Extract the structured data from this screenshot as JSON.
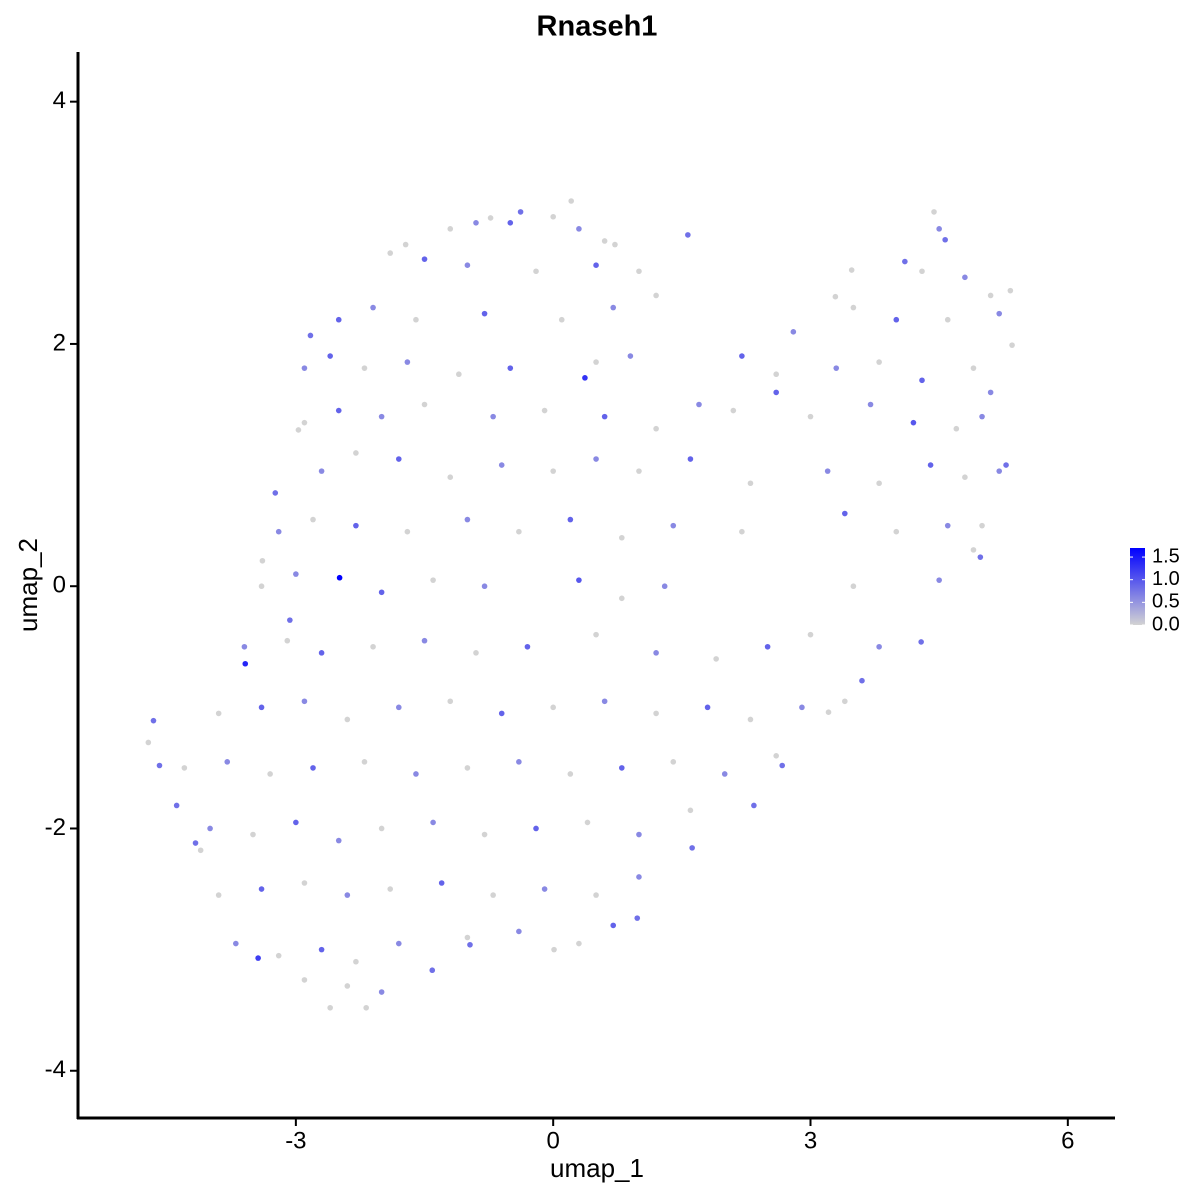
{
  "chart_data": {
    "type": "scatter",
    "title": "Rnaseh1",
    "x_label": "umap_1",
    "y_label": "umap_2",
    "xlim": [
      -5.54,
      6.55
    ],
    "ylim": [
      -4.39,
      4.41
    ],
    "xticks": [
      -3,
      0,
      3,
      6
    ],
    "yticks": [
      -4,
      -2,
      0,
      2,
      4
    ],
    "color_low": "#d3d3d3",
    "color_high": "#0000ff",
    "color_lim": [
      0,
      1.7
    ],
    "color_ticks": [
      {
        "value": 0,
        "label": "0.0"
      },
      0.5,
      {
        "value": 1,
        "label": "1.0"
      },
      1.5
    ],
    "x": [
      -4.72,
      -4.66,
      -4.59,
      -4.39,
      -2.49,
      -3.59,
      -2.6,
      -2.18,
      0.21,
      4.44,
      4.57,
      5.33,
      5.35,
      5.28,
      4.98,
      4.29,
      3.6,
      3.21,
      2.67,
      2.34,
      1.62,
      0.98,
      0.01,
      -0.97,
      -1.41,
      -3.44,
      -2.97,
      -2.83,
      -1.72,
      -0.73,
      -0.38,
      0.72,
      1.57,
      3.29,
      3.48,
      4.1,
      0.37,
      -3.24,
      -3.39,
      -3.07,
      -4.11,
      -4.17,
      -1.2,
      -0.9,
      -0.5,
      0.0,
      0.3,
      0.6,
      4.5,
      -1.9,
      -1.5,
      -1.0,
      -0.2,
      0.5,
      1.0,
      4.3,
      4.8,
      5.1,
      -2.5,
      -2.1,
      -1.6,
      -0.8,
      0.1,
      0.7,
      1.2,
      2.8,
      3.5,
      4.0,
      4.6,
      5.2,
      -2.9,
      -2.6,
      -2.2,
      -1.7,
      -1.1,
      -0.5,
      0.5,
      0.9,
      2.2,
      2.6,
      3.3,
      3.8,
      4.3,
      4.9,
      5.1,
      -2.9,
      -2.5,
      -2.0,
      -1.5,
      -0.7,
      -0.1,
      0.6,
      1.2,
      1.7,
      2.1,
      2.6,
      3.0,
      3.7,
      4.2,
      4.7,
      5.0,
      -2.7,
      -2.3,
      -1.8,
      -1.2,
      -0.6,
      0.0,
      0.5,
      1.0,
      1.6,
      2.3,
      3.2,
      3.8,
      4.4,
      4.8,
      5.2,
      -3.2,
      -2.8,
      -2.3,
      -1.7,
      -1.0,
      -0.4,
      0.2,
      0.8,
      1.4,
      2.2,
      3.4,
      4.0,
      4.6,
      5.0,
      -3.4,
      -3.0,
      -2.0,
      -1.4,
      -0.8,
      0.3,
      0.8,
      1.3,
      3.5,
      4.5,
      4.9,
      -3.6,
      -3.1,
      -2.7,
      -2.1,
      -1.5,
      -0.9,
      -0.3,
      0.5,
      1.2,
      1.9,
      2.5,
      3.0,
      3.8,
      -3.9,
      -3.4,
      -2.9,
      -2.4,
      -1.8,
      -1.2,
      -0.6,
      0.0,
      0.6,
      1.2,
      1.8,
      2.3,
      2.9,
      3.4,
      -4.3,
      -3.8,
      -3.3,
      -2.8,
      -2.2,
      -1.6,
      -1.0,
      -0.4,
      0.2,
      0.8,
      1.4,
      2.0,
      2.6,
      -4.0,
      -3.5,
      -3.0,
      -2.5,
      -2.0,
      -1.4,
      -0.8,
      -0.2,
      0.4,
      1.0,
      1.6,
      -3.9,
      -3.4,
      -2.9,
      -2.4,
      -1.9,
      -1.3,
      -0.7,
      -0.1,
      0.5,
      1.0,
      -3.7,
      -3.2,
      -2.7,
      -2.3,
      -1.8,
      -1.0,
      -0.4,
      0.3,
      0.7,
      -2.9,
      -2.4,
      -2.0
    ],
    "y": [
      -1.29,
      -1.11,
      -1.48,
      -1.81,
      0.07,
      -0.64,
      -3.48,
      -3.48,
      3.18,
      3.09,
      2.86,
      2.44,
      1.99,
      1.0,
      0.24,
      -0.46,
      -0.78,
      -1.04,
      -1.48,
      -1.81,
      -2.16,
      -2.74,
      -3.0,
      -2.96,
      -3.17,
      -3.07,
      1.29,
      2.07,
      2.82,
      3.04,
      3.09,
      2.82,
      2.9,
      2.39,
      2.61,
      2.68,
      1.72,
      0.77,
      0.21,
      -0.28,
      -2.18,
      -2.12,
      2.95,
      3.0,
      3.0,
      3.05,
      2.95,
      2.85,
      2.95,
      2.75,
      2.7,
      2.65,
      2.6,
      2.65,
      2.6,
      2.6,
      2.55,
      2.4,
      2.2,
      2.3,
      2.2,
      2.25,
      2.2,
      2.3,
      2.4,
      2.1,
      2.3,
      2.2,
      2.2,
      2.25,
      1.8,
      1.9,
      1.8,
      1.85,
      1.75,
      1.8,
      1.85,
      1.9,
      1.9,
      1.75,
      1.8,
      1.85,
      1.7,
      1.8,
      1.6,
      1.35,
      1.45,
      1.4,
      1.5,
      1.4,
      1.45,
      1.4,
      1.3,
      1.5,
      1.45,
      1.6,
      1.4,
      1.5,
      1.35,
      1.3,
      1.4,
      0.95,
      1.1,
      1.05,
      0.9,
      1.0,
      0.95,
      1.05,
      0.95,
      1.05,
      0.85,
      0.95,
      0.85,
      1.0,
      0.9,
      0.95,
      0.45,
      0.55,
      0.5,
      0.45,
      0.55,
      0.45,
      0.55,
      0.4,
      0.5,
      0.45,
      0.6,
      0.45,
      0.5,
      0.5,
      0.0,
      0.1,
      -0.05,
      0.05,
      0.0,
      0.05,
      -0.1,
      0.0,
      0.0,
      0.05,
      0.3,
      -0.5,
      -0.45,
      -0.55,
      -0.5,
      -0.45,
      -0.55,
      -0.5,
      -0.4,
      -0.55,
      -0.6,
      -0.5,
      -0.4,
      -0.5,
      -1.05,
      -1.0,
      -0.95,
      -1.1,
      -1.0,
      -0.95,
      -1.05,
      -1.0,
      -0.95,
      -1.05,
      -1.0,
      -1.1,
      -1.0,
      -0.95,
      -1.5,
      -1.45,
      -1.55,
      -1.5,
      -1.45,
      -1.55,
      -1.5,
      -1.45,
      -1.55,
      -1.5,
      -1.45,
      -1.55,
      -1.4,
      -2.0,
      -2.05,
      -1.95,
      -2.1,
      -2.0,
      -1.95,
      -2.05,
      -2.0,
      -1.95,
      -2.05,
      -1.85,
      -2.55,
      -2.5,
      -2.45,
      -2.55,
      -2.5,
      -2.45,
      -2.55,
      -2.5,
      -2.55,
      -2.4,
      -2.95,
      -3.05,
      -3.0,
      -3.1,
      -2.95,
      -2.9,
      -2.85,
      -2.95,
      -2.8,
      -3.25,
      -3.3,
      -3.35
    ],
    "values": [
      0,
      0.8,
      0.8,
      0.8,
      1.7,
      1.4,
      0,
      0,
      0,
      0,
      0.8,
      0,
      0,
      0.8,
      0.8,
      0.8,
      0.8,
      0,
      0.8,
      0.8,
      0.8,
      0.8,
      0,
      0.8,
      0.8,
      1.2,
      0,
      0.8,
      0,
      0,
      0.8,
      0,
      0.8,
      0,
      0,
      0.8,
      1.3,
      0.8,
      0,
      0.8,
      0,
      0.8,
      0,
      0.6,
      0.9,
      0,
      0.6,
      0,
      0.6,
      0,
      0.9,
      0.6,
      0,
      0.9,
      0,
      0,
      0.6,
      0,
      0.9,
      0.6,
      0,
      0.9,
      0,
      0.6,
      0,
      0.6,
      0,
      0.9,
      0,
      0.6,
      0.6,
      0.9,
      0,
      0.6,
      0,
      0.9,
      0,
      0.6,
      0.9,
      0,
      0.6,
      0,
      0.9,
      0,
      0.6,
      0,
      0.9,
      0.6,
      0,
      0.6,
      0,
      0.9,
      0,
      0.6,
      0,
      0.9,
      0,
      0.6,
      1.0,
      0,
      0.6,
      0.6,
      0,
      0.9,
      0,
      0.6,
      0,
      0.6,
      0,
      0.9,
      0,
      0.6,
      0,
      0.9,
      0,
      0.6,
      0.6,
      0,
      0.9,
      0,
      0.6,
      0,
      0.9,
      0,
      0.6,
      0,
      0.9,
      0,
      0.6,
      0,
      0,
      0.6,
      0.9,
      0,
      0.6,
      1.0,
      0,
      0.6,
      0,
      0.6,
      0,
      0.6,
      0,
      0.9,
      0,
      0.6,
      0,
      0.9,
      0,
      0.6,
      0,
      0.9,
      0,
      0.6,
      0,
      0.9,
      0.6,
      0,
      0.6,
      0,
      0.9,
      0,
      0.6,
      0,
      0.9,
      0,
      0.6,
      0,
      0,
      0.6,
      0,
      0.9,
      0,
      0.6,
      0,
      0.6,
      0,
      0.9,
      0,
      0.6,
      0,
      0.6,
      0,
      0.9,
      0.6,
      0,
      0.6,
      0,
      0.9,
      0,
      0.6,
      0,
      0,
      0.9,
      0,
      0.6,
      0,
      0.9,
      0,
      0.6,
      0,
      0.6,
      0.6,
      0,
      0.9,
      0,
      0.6,
      0,
      0.6,
      0,
      0.9,
      0,
      0,
      0.6
    ]
  }
}
